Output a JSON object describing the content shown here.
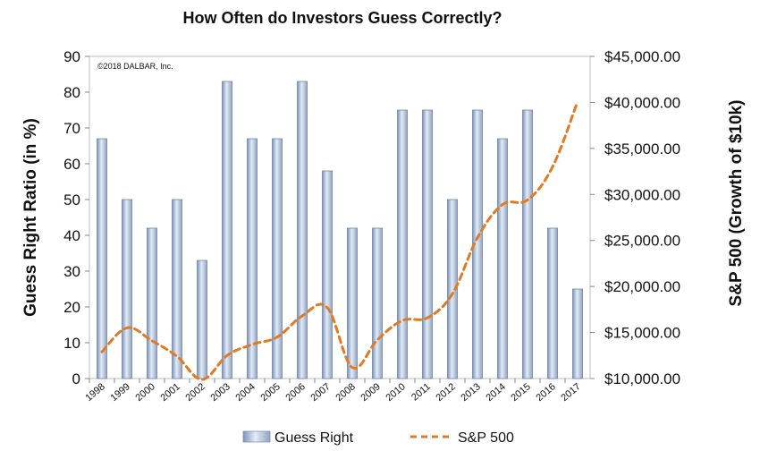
{
  "chart_data": {
    "type": "bar",
    "title": "How Often do Investors Guess Correctly?",
    "copyright": "©2018 DALBAR, Inc.",
    "ylabel_left": "Guess Right Ratio (in %)",
    "ylabel_right": "S&P 500 (Growth of $10k)",
    "categories": [
      "1998",
      "1999",
      "2000",
      "2001",
      "2002",
      "2003",
      "2004",
      "2005",
      "2006",
      "2007",
      "2008",
      "2009",
      "2010",
      "2011",
      "2012",
      "2013",
      "2014",
      "2015",
      "2016",
      "2017"
    ],
    "left_ticks": [
      "0",
      "10",
      "20",
      "30",
      "40",
      "50",
      "60",
      "70",
      "80",
      "90"
    ],
    "right_ticks": [
      "$10,000.00",
      "$15,000.00",
      "$20,000.00",
      "$25,000.00",
      "$30,000.00",
      "$35,000.00",
      "$40,000.00",
      "$45,000.00"
    ],
    "ylim_left": [
      0,
      90
    ],
    "ylim_right": [
      10000,
      45000
    ],
    "grid": false,
    "legend_position": "bottom",
    "series": [
      {
        "name": "Guess Right",
        "type": "bar",
        "axis": "left",
        "color": "#a9bcd6",
        "values": [
          67,
          50,
          42,
          50,
          33,
          83,
          67,
          67,
          83,
          58,
          42,
          42,
          75,
          75,
          50,
          75,
          67,
          75,
          42,
          25
        ]
      },
      {
        "name": "S&P 500",
        "type": "line",
        "axis": "right",
        "style": "dashed",
        "color": "#e07b24",
        "values": [
          12900,
          15500,
          14100,
          12400,
          9900,
          12500,
          13700,
          14500,
          16800,
          17700,
          11200,
          14200,
          16300,
          16600,
          19200,
          25300,
          28900,
          29400,
          33000,
          40100
        ]
      }
    ]
  }
}
